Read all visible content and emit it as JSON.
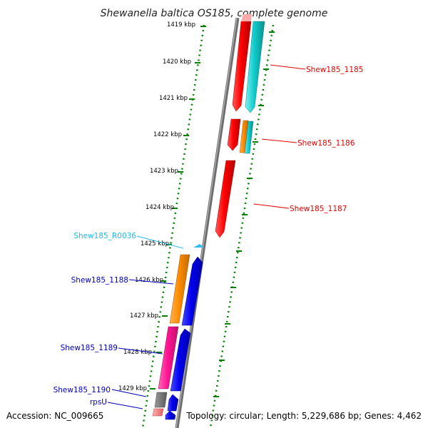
{
  "title": "Shewanella baltica OS185, complete genome",
  "footer": {
    "accession": "Accession: NC_009665",
    "summary": "Topology: circular; Length: 5,229,686 bp; Genes: 4,462"
  },
  "axis": {
    "unit": "kbp",
    "ticks": [
      "1419 kbp",
      "1420 kbp",
      "1421 kbp",
      "1422 kbp",
      "1423 kbp",
      "1424 kbp",
      "1425 kbp",
      "1426 kbp",
      "1427 kbp",
      "1428 kbp",
      "1429 kbp"
    ]
  },
  "gene_labels": [
    {
      "id": "Shew185_1185",
      "text": "Shew185_1185",
      "color": "#e00000",
      "side": "right"
    },
    {
      "id": "Shew185_1186",
      "text": "Shew185_1186",
      "color": "#e00000",
      "side": "right"
    },
    {
      "id": "Shew185_1187",
      "text": "Shew185_1187",
      "color": "#e00000",
      "side": "right"
    },
    {
      "id": "Shew185_R0036",
      "text": "Shew185_R0036",
      "color": "#22b8e6",
      "side": "left"
    },
    {
      "id": "Shew185_1188",
      "text": "Shew185_1188",
      "color": "#0000c0",
      "side": "left"
    },
    {
      "id": "Shew185_1189",
      "text": "Shew185_1189",
      "color": "#0000c0",
      "side": "left"
    },
    {
      "id": "Shew185_1190",
      "text": "Shew185_1190",
      "color": "#0000c0",
      "side": "left"
    },
    {
      "id": "rpsU",
      "text": "rpsU",
      "color": "#0000c0",
      "side": "left"
    }
  ],
  "colors": {
    "red": "#ff0000",
    "cyan": "#11cccc",
    "orange": "#ff8c00",
    "blue": "#0000ee",
    "pink": "#ff1493",
    "gray": "#707070",
    "salmon": "#f08080",
    "sky": "#33bbee",
    "track_dots": "#008000",
    "backbone": "#808080"
  }
}
